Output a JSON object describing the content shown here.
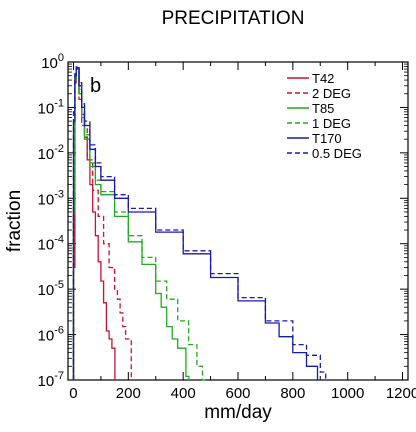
{
  "chart_data": {
    "type": "line",
    "title": "PRECIPITATION",
    "panel_label": "b",
    "xlabel": "mm/day",
    "ylabel": "fraction",
    "xlim": [
      -20,
      1220
    ],
    "ylim_exponents": [
      -7,
      0
    ],
    "y_log_scale": true,
    "x_ticks": [
      "0",
      "200",
      "400",
      "600",
      "800",
      "1000",
      "1200"
    ],
    "y_ticks": [
      {
        "base": "10",
        "exp": "0"
      },
      {
        "base": "10",
        "exp": "-1"
      },
      {
        "base": "10",
        "exp": "-2"
      },
      {
        "base": "10",
        "exp": "-3"
      },
      {
        "base": "10",
        "exp": "-4"
      },
      {
        "base": "10",
        "exp": "-5"
      },
      {
        "base": "10",
        "exp": "-6"
      },
      {
        "base": "10",
        "exp": "-7"
      }
    ],
    "legend_position": "top-right",
    "series": [
      {
        "name": "T42",
        "color": "#cc1133",
        "dash": "solid",
        "points": [
          [
            0,
            3e-05
          ],
          [
            5,
            0.35
          ],
          [
            10,
            0.7
          ],
          [
            20,
            0.2
          ],
          [
            30,
            0.07
          ],
          [
            40,
            0.022
          ],
          [
            50,
            0.007
          ],
          [
            60,
            0.002
          ],
          [
            70,
            0.0005
          ],
          [
            80,
            0.00015
          ],
          [
            90,
            4e-05
          ],
          [
            100,
            1.5e-05
          ],
          [
            110,
            5e-06
          ],
          [
            120,
            1.2e-06
          ],
          [
            130,
            8e-07
          ],
          [
            140,
            5e-07
          ]
        ]
      },
      {
        "name": "2 DEG",
        "color": "#cc1133",
        "dash": "dashed",
        "points": [
          [
            0,
            0.0002
          ],
          [
            5,
            0.4
          ],
          [
            10,
            0.7
          ],
          [
            20,
            0.15
          ],
          [
            30,
            0.04
          ],
          [
            50,
            0.007
          ],
          [
            70,
            0.0015
          ],
          [
            90,
            0.0004
          ],
          [
            110,
            0.0001
          ],
          [
            130,
            3e-05
          ],
          [
            150,
            1e-05
          ],
          [
            160,
            6e-06
          ],
          [
            170,
            3e-06
          ],
          [
            180,
            1.5e-06
          ],
          [
            190,
            8e-07
          ],
          [
            200,
            8e-07
          ]
        ]
      },
      {
        "name": "T85",
        "color": "#22aa22",
        "dash": "solid",
        "points": [
          [
            0,
            0.0005
          ],
          [
            5,
            0.4
          ],
          [
            10,
            0.75
          ],
          [
            20,
            0.2
          ],
          [
            30,
            0.06
          ],
          [
            40,
            0.02
          ],
          [
            60,
            0.005
          ],
          [
            80,
            0.002
          ],
          [
            100,
            0.0012
          ],
          [
            150,
            0.0004
          ],
          [
            200,
            0.00011
          ],
          [
            250,
            3.5e-05
          ],
          [
            300,
            8e-06
          ],
          [
            320,
            4e-06
          ],
          [
            340,
            1.5e-06
          ],
          [
            360,
            8e-07
          ],
          [
            380,
            5e-07
          ],
          [
            410,
            1.2e-07
          ]
        ]
      },
      {
        "name": "1 DEG",
        "color": "#22aa22",
        "dash": "dashed",
        "points": [
          [
            0,
            0.003
          ],
          [
            5,
            0.45
          ],
          [
            10,
            0.75
          ],
          [
            20,
            0.25
          ],
          [
            30,
            0.08
          ],
          [
            40,
            0.025
          ],
          [
            60,
            0.006
          ],
          [
            80,
            0.0025
          ],
          [
            100,
            0.0014
          ],
          [
            150,
            0.0005
          ],
          [
            200,
            0.00015
          ],
          [
            250,
            5e-05
          ],
          [
            300,
            1.5e-05
          ],
          [
            340,
            6e-06
          ],
          [
            380,
            2e-06
          ],
          [
            420,
            6e-07
          ],
          [
            450,
            2e-07
          ],
          [
            470,
            1e-07
          ]
        ]
      },
      {
        "name": "T170",
        "color": "#1a1aaa",
        "dash": "solid",
        "points": [
          [
            0,
            0.05
          ],
          [
            5,
            0.5
          ],
          [
            10,
            0.75
          ],
          [
            20,
            0.3
          ],
          [
            30,
            0.1
          ],
          [
            40,
            0.04
          ],
          [
            60,
            0.012
          ],
          [
            80,
            0.005
          ],
          [
            100,
            0.0025
          ],
          [
            150,
            0.001
          ],
          [
            200,
            0.0005
          ],
          [
            300,
            0.00018
          ],
          [
            400,
            6e-05
          ],
          [
            500,
            1.8e-05
          ],
          [
            600,
            5.5e-06
          ],
          [
            700,
            1.8e-06
          ],
          [
            750,
            9e-07
          ],
          [
            800,
            4e-07
          ],
          [
            850,
            2e-07
          ],
          [
            890,
            1e-07
          ]
        ]
      },
      {
        "name": "0.5 DEG",
        "color": "#1a1aaa",
        "dash": "dashed",
        "points": [
          [
            0,
            0.08
          ],
          [
            5,
            0.55
          ],
          [
            10,
            0.78
          ],
          [
            20,
            0.35
          ],
          [
            30,
            0.12
          ],
          [
            40,
            0.05
          ],
          [
            60,
            0.015
          ],
          [
            80,
            0.006
          ],
          [
            100,
            0.003
          ],
          [
            150,
            0.0012
          ],
          [
            200,
            0.0006
          ],
          [
            300,
            0.0002
          ],
          [
            400,
            7e-05
          ],
          [
            500,
            2.2e-05
          ],
          [
            600,
            6.5e-06
          ],
          [
            700,
            2e-06
          ],
          [
            800,
            6e-07
          ],
          [
            850,
            3.5e-07
          ],
          [
            900,
            1.5e-07
          ],
          [
            920,
            1e-07
          ]
        ]
      }
    ]
  }
}
